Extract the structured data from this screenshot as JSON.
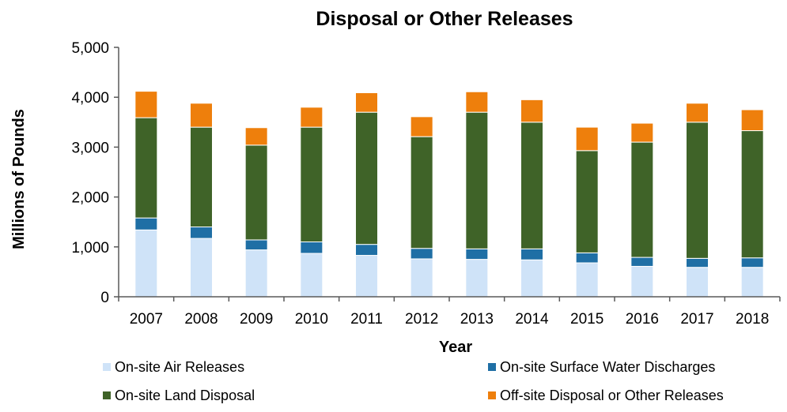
{
  "chart_data": {
    "type": "bar",
    "stacked": true,
    "title": "Disposal or Other Releases",
    "xlabel": "Year",
    "ylabel": "Millions of Pounds",
    "ylim": [
      0,
      5000
    ],
    "y_ticks": [
      "0",
      "1,000",
      "2,000",
      "3,000",
      "4,000",
      "5,000"
    ],
    "y_tick_values": [
      0,
      1000,
      2000,
      3000,
      4000,
      5000
    ],
    "grid": false,
    "legend_position": "bottom",
    "categories": [
      "2007",
      "2008",
      "2009",
      "2010",
      "2011",
      "2012",
      "2013",
      "2014",
      "2015",
      "2016",
      "2017",
      "2018"
    ],
    "series": [
      {
        "name": "On-site Air Releases",
        "color": "#cfe3f8",
        "values": [
          1340,
          1170,
          940,
          870,
          830,
          760,
          750,
          740,
          680,
          610,
          590,
          590
        ]
      },
      {
        "name": "On-site Surface Water Discharges",
        "color": "#1f6fa5",
        "values": [
          240,
          230,
          200,
          230,
          220,
          210,
          210,
          220,
          200,
          180,
          180,
          190
        ]
      },
      {
        "name": "On-site Land Disposal",
        "color": "#3f6328",
        "values": [
          2010,
          2000,
          1900,
          2300,
          2650,
          2240,
          2740,
          2540,
          2050,
          2310,
          2730,
          2550
        ]
      },
      {
        "name": "Off-site Disposal or Other Releases",
        "color": "#ee7f0c",
        "values": [
          530,
          480,
          350,
          400,
          390,
          400,
          410,
          450,
          470,
          380,
          380,
          420
        ]
      }
    ]
  }
}
